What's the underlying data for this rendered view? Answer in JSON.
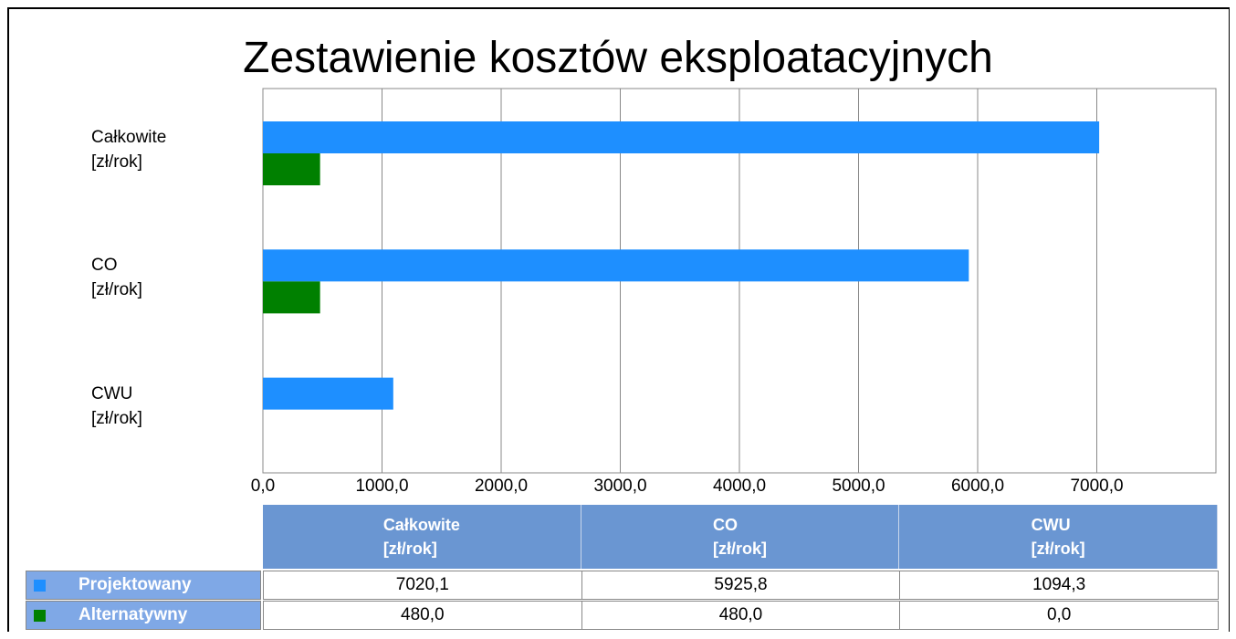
{
  "chart_data": {
    "type": "bar",
    "orientation": "horizontal",
    "title": "Zestawienie kosztów eksploatacyjnych",
    "categories": [
      "Całkowite\n[zł/rok]",
      "CO\n[zł/rok]",
      "CWU\n[zł/rok]"
    ],
    "series": [
      {
        "name": "Projektowany",
        "color": "#1e8fff",
        "values": [
          7020.1,
          5925.8,
          1094.3
        ],
        "value_labels": [
          "7020,1",
          "5925,8",
          "1094,3"
        ]
      },
      {
        "name": "Alternatywny",
        "color": "#008000",
        "values": [
          480,
          480,
          0
        ],
        "value_labels": [
          "480,0",
          "480,0",
          "0,0"
        ]
      }
    ],
    "xlim": [
      0,
      8000
    ],
    "xticks": [
      {
        "value": 0,
        "label": "0,0"
      },
      {
        "value": 1000,
        "label": "1000,0"
      },
      {
        "value": 2000,
        "label": "2000,0"
      },
      {
        "value": 3000,
        "label": "3000,0"
      },
      {
        "value": 4000,
        "label": "4000,0"
      },
      {
        "value": 5000,
        "label": "5000,0"
      },
      {
        "value": 6000,
        "label": "6000,0"
      },
      {
        "value": 7000,
        "label": "7000,0"
      }
    ],
    "grid": true
  }
}
